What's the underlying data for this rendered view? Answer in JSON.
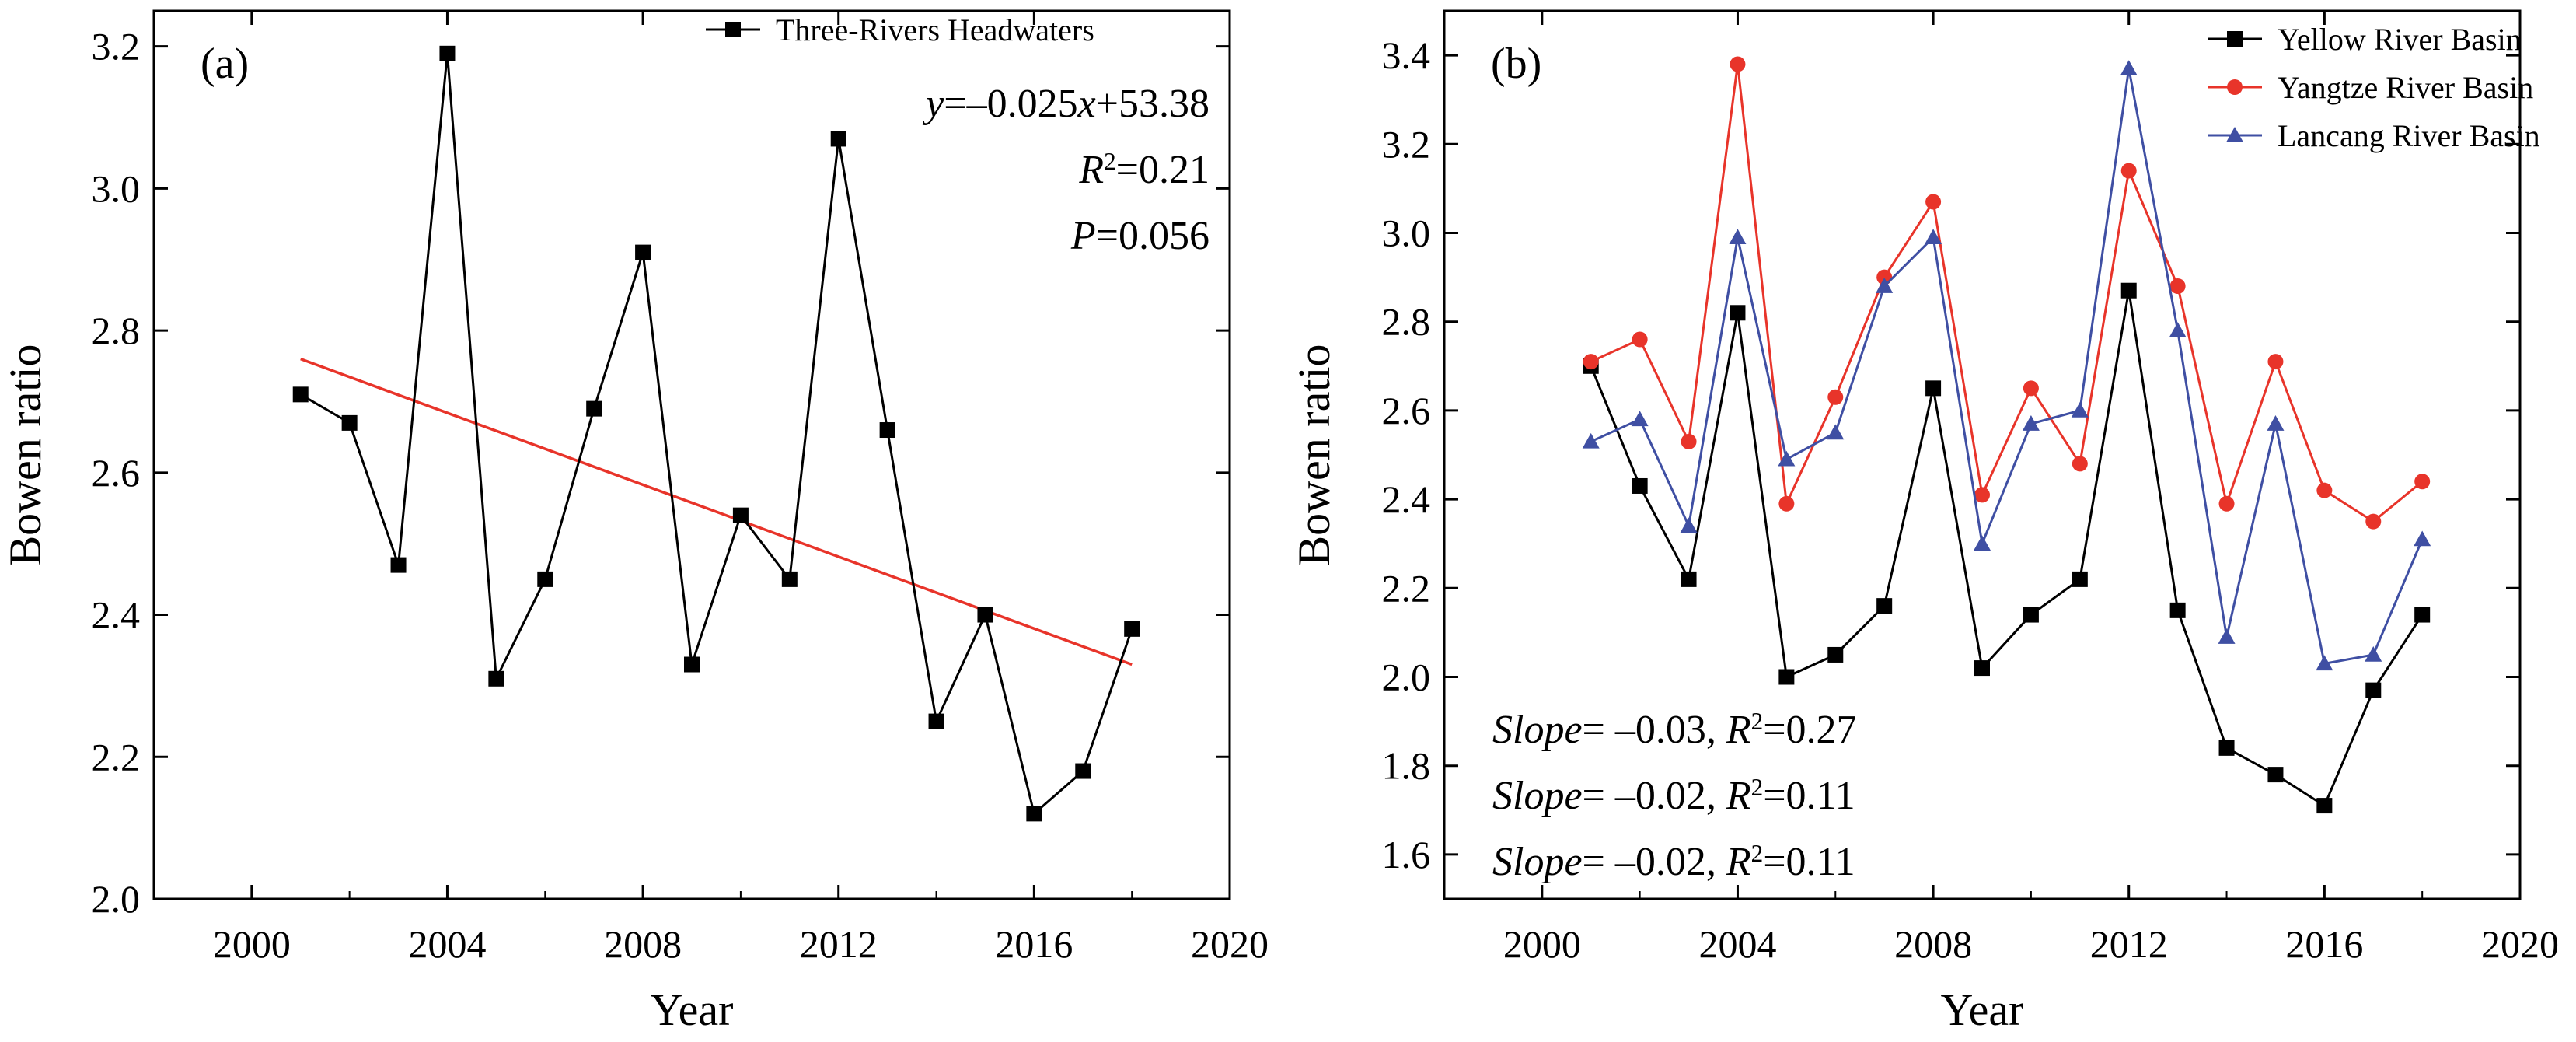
{
  "chart_data": [
    {
      "type": "line",
      "panel_label": "(a)",
      "xlabel": "Year",
      "ylabel": "Bowen ratio",
      "xlim": [
        1998,
        2020
      ],
      "ylim": [
        2.0,
        3.25
      ],
      "xticks": [
        2000,
        2004,
        2008,
        2012,
        2016,
        2020
      ],
      "yticks": [
        2.0,
        2.2,
        2.4,
        2.6,
        2.8,
        3.0,
        3.2
      ],
      "grid": false,
      "legend_position": "top-right",
      "x": [
        2001,
        2002,
        2003,
        2004,
        2005,
        2006,
        2007,
        2008,
        2009,
        2010,
        2011,
        2012,
        2013,
        2014,
        2015,
        2016,
        2017,
        2018
      ],
      "series": [
        {
          "name": "Three-Rivers Headwaters",
          "color": "#000000",
          "marker": "square",
          "values": [
            2.71,
            2.67,
            2.47,
            3.19,
            2.31,
            2.45,
            2.69,
            2.91,
            2.33,
            2.54,
            2.45,
            3.07,
            2.66,
            2.25,
            2.4,
            2.12,
            2.18,
            2.38
          ]
        }
      ],
      "trend_line": {
        "color": "#e8342a",
        "x": [
          2001,
          2018
        ],
        "y": [
          2.76,
          2.33
        ]
      },
      "annotations": [
        {
          "id": "eq",
          "parts": [
            {
              "t": "y",
              "italic": true
            },
            {
              "t": "=–0.025"
            },
            {
              "t": "x",
              "italic": true
            },
            {
              "t": "+53.38"
            }
          ]
        },
        {
          "id": "r2",
          "parts": [
            {
              "t": "R",
              "italic": true
            },
            {
              "t": "2",
              "sup": true
            },
            {
              "t": "=0.21"
            }
          ]
        },
        {
          "id": "p",
          "parts": [
            {
              "t": "P",
              "italic": true
            },
            {
              "t": "=0.056"
            }
          ]
        }
      ]
    },
    {
      "type": "line",
      "panel_label": "(b)",
      "xlabel": "Year",
      "ylabel": "Bowen ratio",
      "xlim": [
        1998,
        2020
      ],
      "ylim": [
        1.5,
        3.5
      ],
      "xticks": [
        2000,
        2004,
        2008,
        2012,
        2016,
        2020
      ],
      "yticks": [
        1.6,
        1.8,
        2.0,
        2.2,
        2.4,
        2.6,
        2.8,
        3.0,
        3.2,
        3.4
      ],
      "grid": false,
      "legend_position": "top-right",
      "x": [
        2001,
        2002,
        2003,
        2004,
        2005,
        2006,
        2007,
        2008,
        2009,
        2010,
        2011,
        2012,
        2013,
        2014,
        2015,
        2016,
        2017,
        2018
      ],
      "series": [
        {
          "name": "Yellow River Basin",
          "color": "#000000",
          "marker": "square",
          "values": [
            2.7,
            2.43,
            2.22,
            2.82,
            2.0,
            2.05,
            2.16,
            2.65,
            2.02,
            2.14,
            2.22,
            2.87,
            2.15,
            1.84,
            1.78,
            1.71,
            1.97,
            2.14
          ]
        },
        {
          "name": "Yangtze River Basin",
          "color": "#e8342a",
          "marker": "circle",
          "values": [
            2.71,
            2.76,
            2.53,
            3.38,
            2.39,
            2.63,
            2.9,
            3.07,
            2.41,
            2.65,
            2.48,
            3.14,
            2.88,
            2.39,
            2.71,
            2.42,
            2.35,
            2.44
          ]
        },
        {
          "name": "Lancang River Basin",
          "color": "#3f4fa3",
          "marker": "triangle",
          "values": [
            2.53,
            2.58,
            2.34,
            2.99,
            2.49,
            2.55,
            2.88,
            2.99,
            2.3,
            2.57,
            2.6,
            3.37,
            2.78,
            2.09,
            2.57,
            2.03,
            2.05,
            2.31
          ]
        }
      ],
      "annotations": [
        {
          "id": "s1",
          "parts": [
            {
              "t": "Slope",
              "italic": true
            },
            {
              "t": "= –0.03, "
            },
            {
              "t": "R",
              "italic": true
            },
            {
              "t": "2",
              "sup": true
            },
            {
              "t": "=0.27"
            }
          ]
        },
        {
          "id": "s2",
          "parts": [
            {
              "t": "Slope",
              "italic": true
            },
            {
              "t": "= –0.02, "
            },
            {
              "t": "R",
              "italic": true
            },
            {
              "t": "2",
              "sup": true
            },
            {
              "t": "=0.11"
            }
          ]
        },
        {
          "id": "s3",
          "parts": [
            {
              "t": "Slope",
              "italic": true
            },
            {
              "t": "= –0.02, "
            },
            {
              "t": "R",
              "italic": true
            },
            {
              "t": "2",
              "sup": true
            },
            {
              "t": "=0.11"
            }
          ]
        }
      ]
    }
  ]
}
